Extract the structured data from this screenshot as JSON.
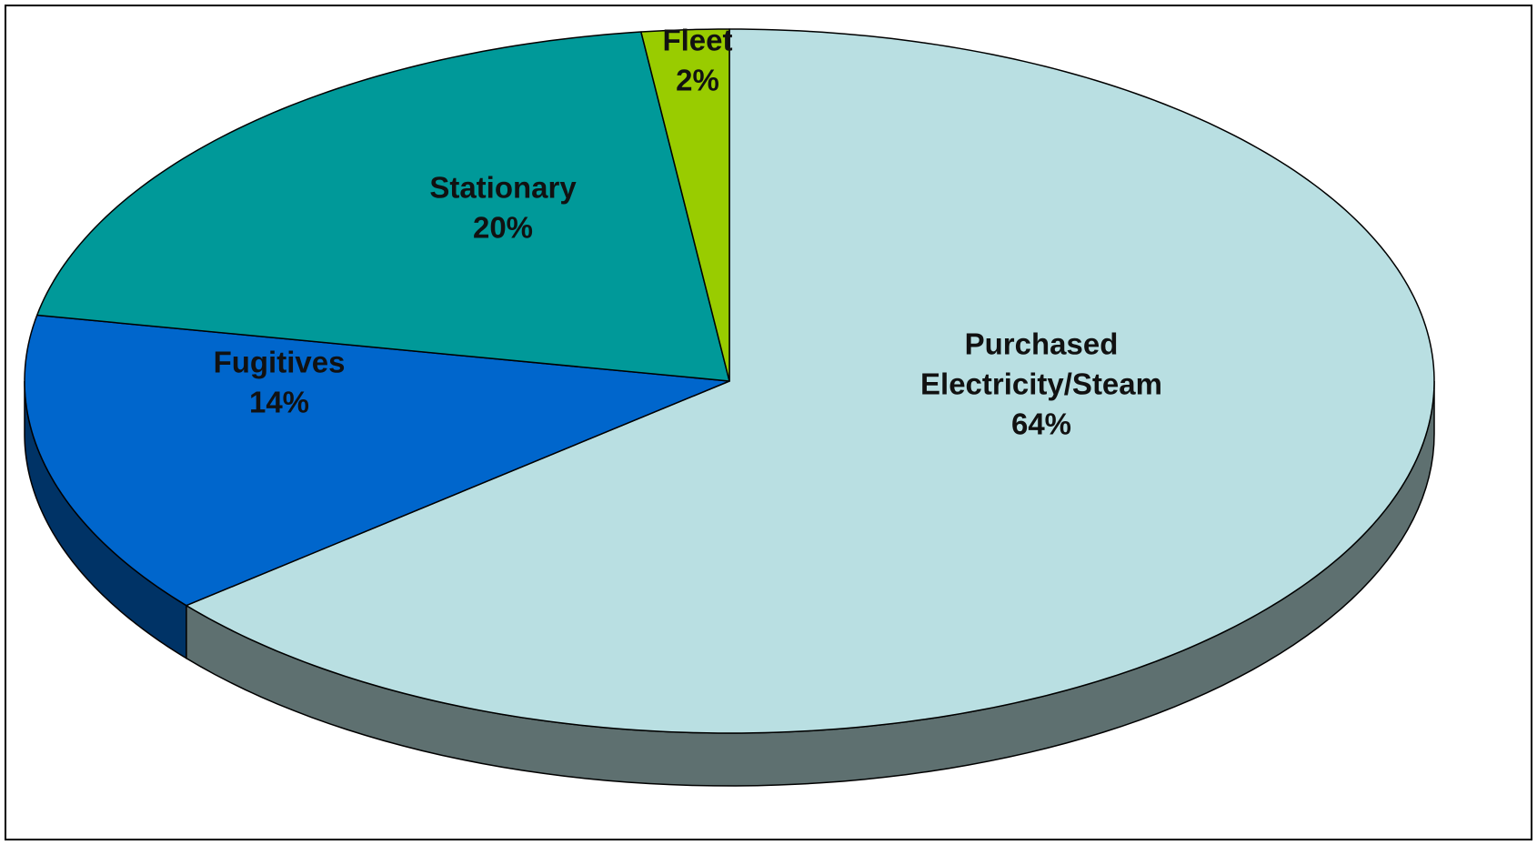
{
  "chart_data": {
    "type": "pie",
    "style": "3d",
    "title": "",
    "slices": [
      {
        "label": "Purchased Electricity/Steam",
        "label_lines": [
          "Purchased",
          "Electricity/Steam"
        ],
        "percent_label": "64%",
        "value": 64,
        "color": "#b9dfe2",
        "side_color": "#5e7070"
      },
      {
        "label": "Fugitives",
        "label_lines": [
          "Fugitives"
        ],
        "percent_label": "14%",
        "value": 14,
        "color": "#0066cc",
        "side_color": "#003366"
      },
      {
        "label": "Stationary",
        "label_lines": [
          "Stationary"
        ],
        "percent_label": "20%",
        "value": 20,
        "color": "#009999",
        "side_color": "#004d4d"
      },
      {
        "label": "Fleet",
        "label_lines": [
          "Fleet"
        ],
        "percent_label": "2%",
        "value": 2,
        "color": "#99cc00",
        "side_color": "#4d6600"
      }
    ]
  }
}
